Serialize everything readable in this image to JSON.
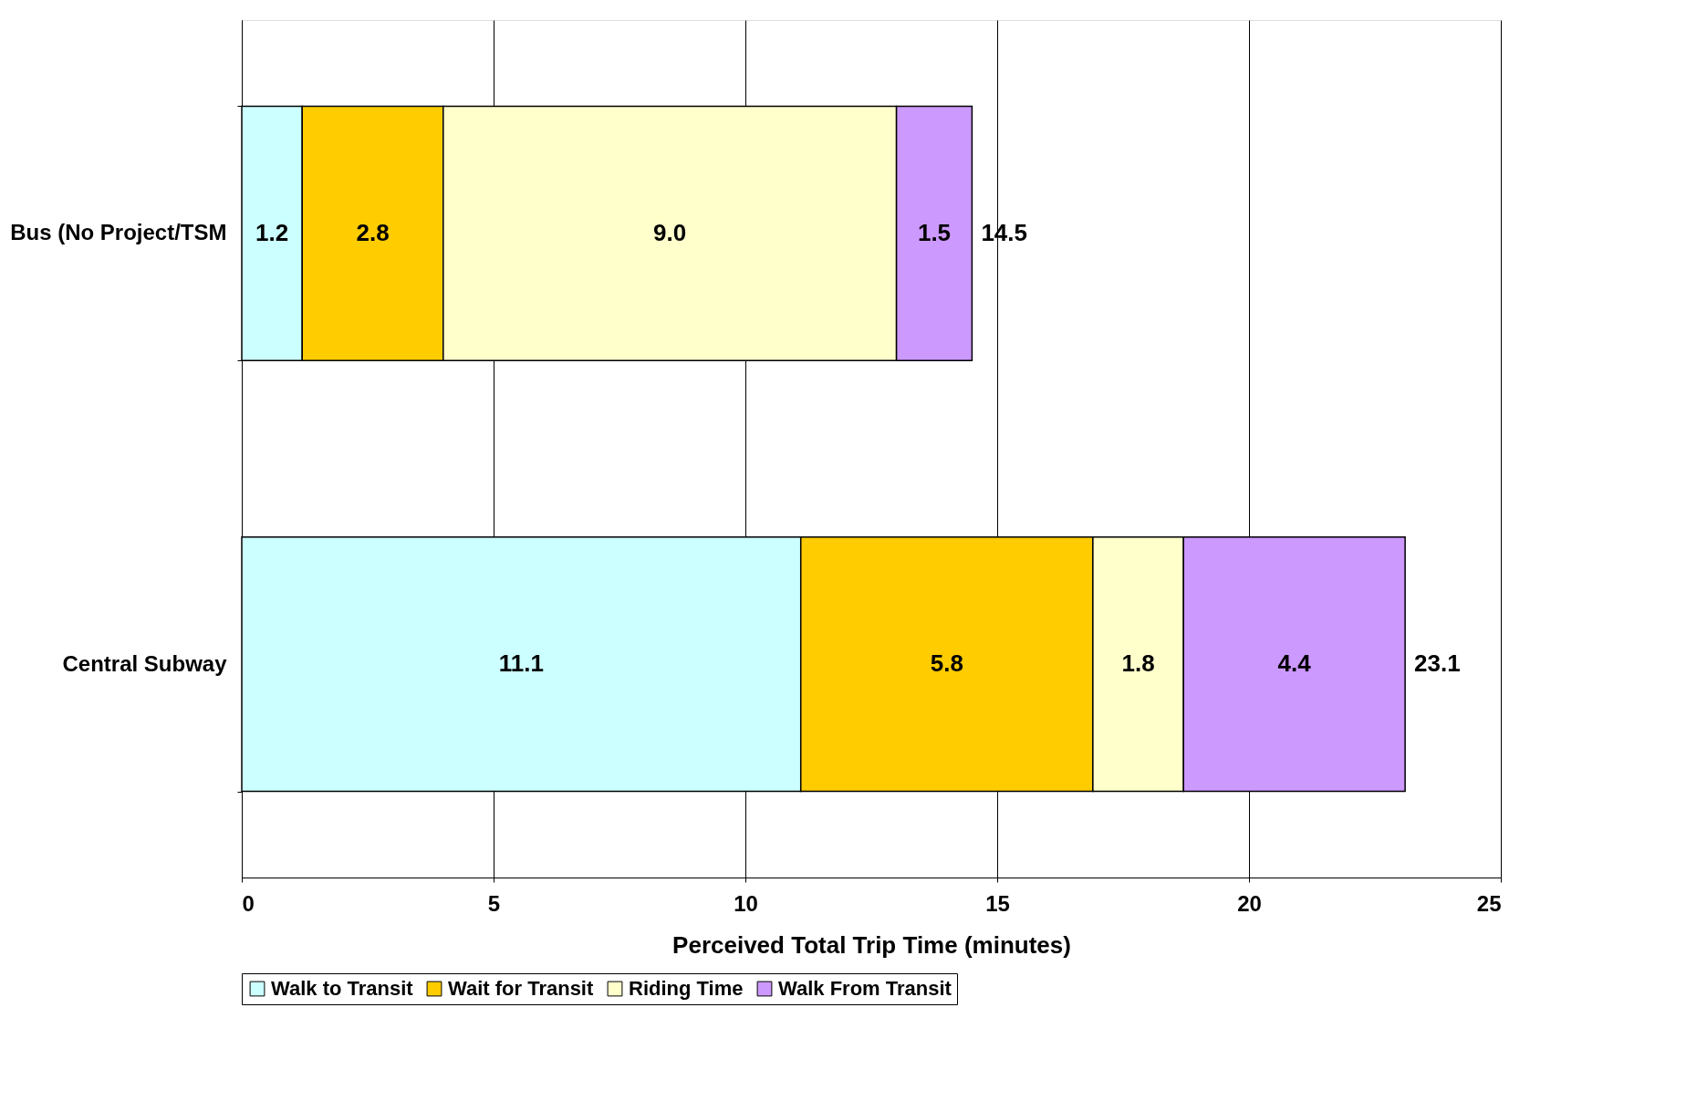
{
  "chart_data": {
    "type": "bar",
    "orientation": "horizontal",
    "stacked": true,
    "xlabel": "Perceived Total Trip Time (minutes)",
    "categories": [
      "Bus (No Project/TSM",
      "Central Subway"
    ],
    "series": [
      {
        "name": "Walk to Transit",
        "color": "#ccffff",
        "values": [
          1.2,
          11.1
        ],
        "value_labels": [
          "1.2",
          "11.1"
        ]
      },
      {
        "name": "Wait for Transit",
        "color": "#ffcc00",
        "values": [
          2.8,
          5.8
        ],
        "value_labels": [
          "2.8",
          "5.8"
        ]
      },
      {
        "name": "Riding Time",
        "color": "#ffffcc",
        "values": [
          9.0,
          1.8
        ],
        "value_labels": [
          "9.0",
          "1.8"
        ]
      },
      {
        "name": "Walk From Transit",
        "color": "#cc99ff",
        "values": [
          1.5,
          4.4
        ],
        "value_labels": [
          "1.5",
          "4.4"
        ]
      }
    ],
    "totals": [
      "14.5",
      "23.1"
    ],
    "xlim": [
      0,
      25
    ],
    "xticks": [
      0,
      5,
      10,
      15,
      20,
      25
    ],
    "grid": "x",
    "legend": "bottom"
  }
}
